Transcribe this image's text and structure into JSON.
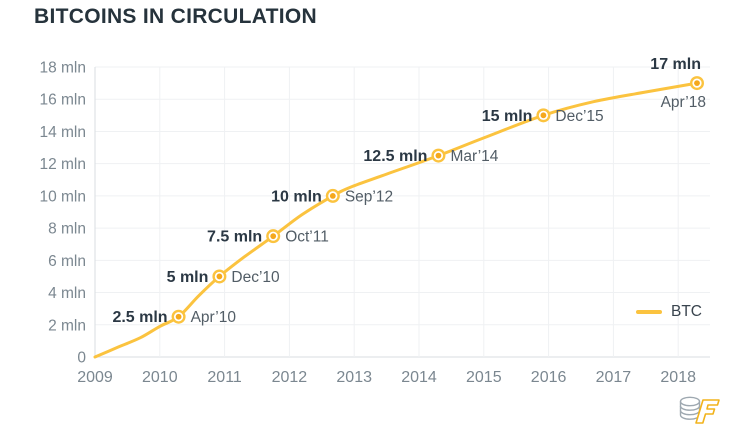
{
  "title": "BITCOINS IN CIRCULATION",
  "legend": {
    "label": "BTC"
  },
  "colors": {
    "line": "#FBC33F",
    "marker_center": "#F5A81C",
    "grid": "#EFF1F3",
    "axis": "#D9DEE2",
    "axis_text": "#7B8790",
    "annotation_value": "#2B3844",
    "annotation_date": "#525D66",
    "title": "#26333C",
    "legend_text": "#39444E",
    "logo_gray": "#9EA8B0",
    "logo_yellow": "#F2B31C"
  },
  "chart_data": {
    "type": "line",
    "title": "BITCOINS IN CIRCULATION",
    "xlabel": "",
    "ylabel": "",
    "xlim": [
      2009,
      2018.5
    ],
    "ylim": [
      0,
      18
    ],
    "grid": true,
    "legend_position": "right-middle",
    "x_ticks": [
      2009,
      2010,
      2011,
      2012,
      2013,
      2014,
      2015,
      2016,
      2017,
      2018
    ],
    "y_ticks": [
      {
        "value": 0,
        "label": "0"
      },
      {
        "value": 2,
        "label": "2 mln"
      },
      {
        "value": 4,
        "label": "4 mln"
      },
      {
        "value": 6,
        "label": "6 mln"
      },
      {
        "value": 8,
        "label": "8 mln"
      },
      {
        "value": 10,
        "label": "10 mln"
      },
      {
        "value": 12,
        "label": "12 mln"
      },
      {
        "value": 14,
        "label": "14 mln"
      },
      {
        "value": 16,
        "label": "16 mln"
      },
      {
        "value": 18,
        "label": "18 mln"
      }
    ],
    "series": [
      {
        "name": "BTC",
        "points": [
          [
            2009.0,
            0
          ],
          [
            2009.35,
            0.6
          ],
          [
            2009.7,
            1.2
          ],
          [
            2010.0,
            1.9
          ],
          [
            2010.29,
            2.5
          ],
          [
            2010.6,
            3.8
          ],
          [
            2010.92,
            5.0
          ],
          [
            2011.3,
            6.2
          ],
          [
            2011.75,
            7.5
          ],
          [
            2012.2,
            8.85
          ],
          [
            2012.67,
            10.0
          ],
          [
            2012.95,
            10.55
          ],
          [
            2013.5,
            11.35
          ],
          [
            2014.3,
            12.5
          ],
          [
            2015.0,
            13.6
          ],
          [
            2015.92,
            15.0
          ],
          [
            2016.7,
            15.85
          ],
          [
            2017.5,
            16.45
          ],
          [
            2018.29,
            17.0
          ]
        ]
      }
    ],
    "annotations": [
      {
        "value_label": "2.5 mln",
        "date_label": "Apr’10",
        "x": 2010.29,
        "y": 2.5,
        "placement": "side"
      },
      {
        "value_label": "5 mln",
        "date_label": "Dec’10",
        "x": 2010.92,
        "y": 5,
        "placement": "side"
      },
      {
        "value_label": "7.5 mln",
        "date_label": "Oct’11",
        "x": 2011.75,
        "y": 7.5,
        "placement": "side"
      },
      {
        "value_label": "10 mln",
        "date_label": "Sep’12",
        "x": 2012.67,
        "y": 10,
        "placement": "side"
      },
      {
        "value_label": "12.5 mln",
        "date_label": "Mar’14",
        "x": 2014.3,
        "y": 12.5,
        "placement": "side"
      },
      {
        "value_label": "15 mln",
        "date_label": "Dec’15",
        "x": 2015.92,
        "y": 15,
        "placement": "side"
      },
      {
        "value_label": "17 mln",
        "date_label": "Apr’18",
        "x": 2018.29,
        "y": 17,
        "placement": "above-below"
      }
    ]
  }
}
